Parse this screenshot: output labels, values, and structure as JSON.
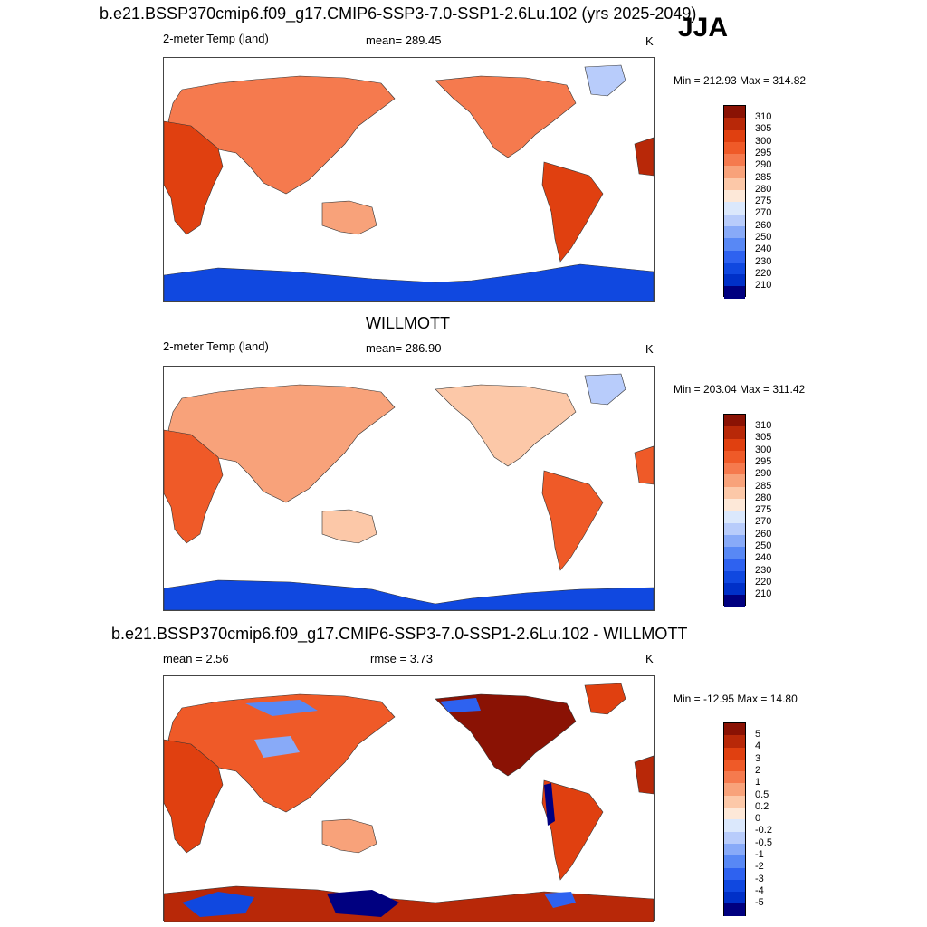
{
  "season": "JJA",
  "panels": [
    {
      "title": "b.e21.BSSP370cmip6.f09_g17.CMIP6-SSP3-7.0-SSP1-2.6Lu.102 (yrs 2025-2049)",
      "left_label": "2-meter Temp (land)",
      "center_label": "mean= 289.45",
      "units": "K",
      "minmax": "Min = 212.93 Max = 314.82",
      "legend_labels": [
        "310",
        "305",
        "300",
        "295",
        "290",
        "285",
        "280",
        "275",
        "270",
        "260",
        "250",
        "240",
        "230",
        "220",
        "210"
      ]
    },
    {
      "title": "WILLMOTT",
      "left_label": "2-meter Temp (land)",
      "center_label": "mean= 286.90",
      "units": "K",
      "minmax": "Min = 203.04 Max = 311.42",
      "legend_labels": [
        "310",
        "305",
        "300",
        "295",
        "290",
        "285",
        "280",
        "275",
        "270",
        "260",
        "250",
        "240",
        "230",
        "220",
        "210"
      ]
    },
    {
      "title": "b.e21.BSSP370cmip6.f09_g17.CMIP6-SSP3-7.0-SSP1-2.6Lu.102 - WILLMOTT",
      "left_label": "mean =   2.56",
      "center_label": "rmse =   3.73",
      "units": "K",
      "minmax": "Min = -12.95 Max =  14.80",
      "legend_labels": [
        "5",
        "4",
        "3",
        "2",
        "1",
        "0.5",
        "0.2",
        "0",
        "-0.2",
        "-0.5",
        "-1",
        "-2",
        "-3",
        "-4",
        "-5"
      ]
    }
  ],
  "colors": {
    "temp_scale": [
      "#000080",
      "#0018a8",
      "#0030c8",
      "#1048e0",
      "#2e62f0",
      "#5888f5",
      "#88aaf8",
      "#b8ccfb",
      "#dbe8fc",
      "#fde8d8",
      "#fcc8a8",
      "#f8a27a",
      "#f57a4e",
      "#ef5a28",
      "#e04010",
      "#b82808",
      "#8a1204"
    ],
    "diff_scale": [
      "#000080",
      "#0018a8",
      "#0030c8",
      "#1048e0",
      "#2e62f0",
      "#5888f5",
      "#88aaf8",
      "#b8ccfb",
      "#dbe8fc",
      "#fde8d8",
      "#fcc8a8",
      "#f8a27a",
      "#f57a4e",
      "#ef5a28",
      "#e04010",
      "#8a1204"
    ],
    "land_warm": "#ef5a28",
    "land_cool": "#f8a27a",
    "antarctic": "#1048e0",
    "ocean": "#ffffff"
  }
}
